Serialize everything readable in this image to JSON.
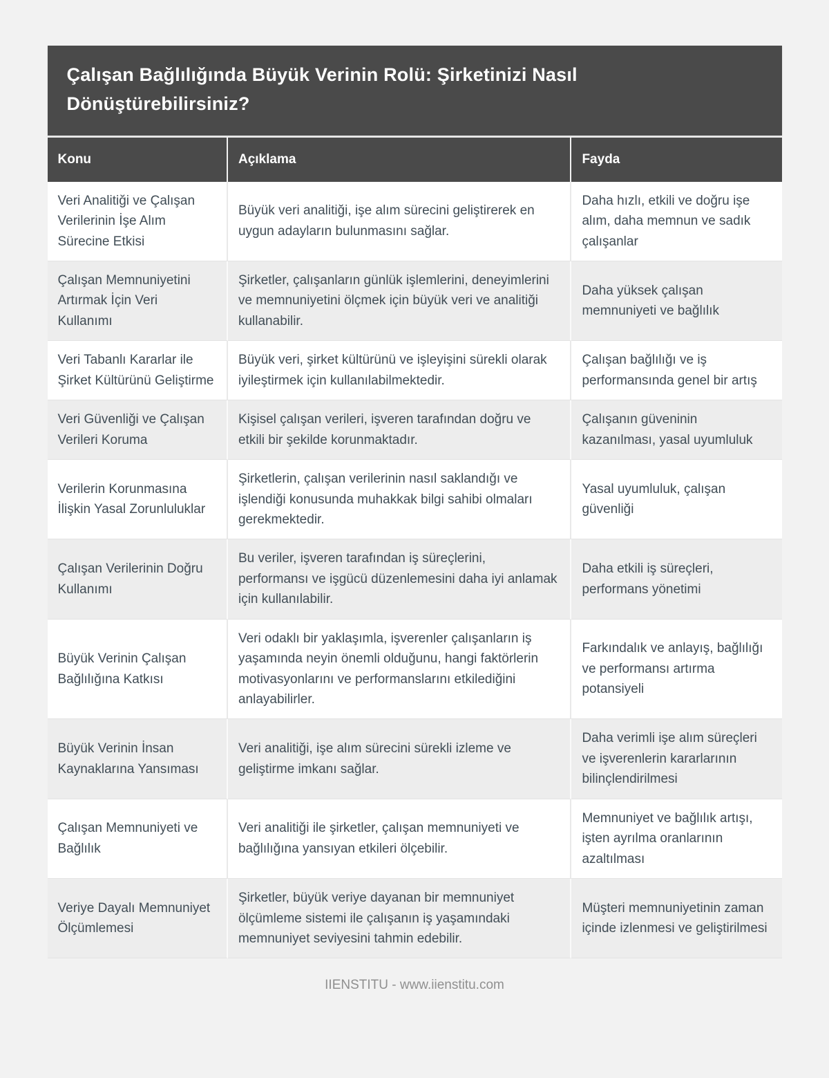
{
  "page": {
    "title": "Çalışan Bağlılığında Büyük Verinin Rolü: Şirketinizi Nasıl Dönüştürebilirsiniz?",
    "footer": "IIENSTITU - www.iienstitu.com"
  },
  "table": {
    "headers": [
      "Konu",
      "Açıklama",
      "Fayda"
    ],
    "rows": [
      {
        "konu": "Veri Analitiği ve Çalışan Verilerinin İşe Alım Sürecine Etkisi",
        "aciklama": "Büyük veri analitiği, işe alım sürecini geliştirerek en uygun adayların bulunmasını sağlar.",
        "fayda": "Daha hızlı, etkili ve doğru işe alım, daha memnun ve sadık çalışanlar"
      },
      {
        "konu": "Çalışan Memnuniyetini Artırmak İçin Veri Kullanımı",
        "aciklama": "Şirketler, çalışanların günlük işlemlerini, deneyimlerini ve memnuniyetini ölçmek için büyük veri ve analitiği kullanabilir.",
        "fayda": "Daha yüksek çalışan memnuniyeti ve bağlılık"
      },
      {
        "konu": "Veri Tabanlı Kararlar ile Şirket Kültürünü Geliştirme",
        "aciklama": "Büyük veri, şirket kültürünü ve işleyişini sürekli olarak iyileştirmek için kullanılabilmektedir.",
        "fayda": "Çalışan bağlılığı ve iş performansında genel bir artış"
      },
      {
        "konu": "Veri Güvenliği ve Çalışan Verileri Koruma",
        "aciklama": "Kişisel çalışan verileri, işveren tarafından doğru ve etkili bir şekilde korunmaktadır.",
        "fayda": "Çalışanın güveninin kazanılması, yasal uyumluluk"
      },
      {
        "konu": "Verilerin Korunmasına İlişkin Yasal Zorunluluklar",
        "aciklama": "Şirketlerin, çalışan verilerinin nasıl saklandığı ve işlendiği konusunda muhakkak bilgi sahibi olmaları gerekmektedir.",
        "fayda": "Yasal uyumluluk, çalışan güvenliği"
      },
      {
        "konu": "Çalışan Verilerinin Doğru Kullanımı",
        "aciklama": "Bu veriler, işveren tarafından iş süreçlerini, performansı ve işgücü düzenlemesini daha iyi anlamak için kullanılabilir.",
        "fayda": "Daha etkili iş süreçleri, performans yönetimi"
      },
      {
        "konu": "Büyük Verinin Çalışan Bağlılığına Katkısı",
        "aciklama": "Veri odaklı bir yaklaşımla, işverenler çalışanların iş yaşamında neyin önemli olduğunu, hangi faktörlerin motivasyonlarını ve performanslarını etkilediğini anlayabilirler.",
        "fayda": "Farkındalık ve anlayış, bağlılığı ve performansı artırma potansiyeli"
      },
      {
        "konu": "Büyük Verinin İnsan Kaynaklarına Yansıması",
        "aciklama": "Veri analitiği, işe alım sürecini sürekli izleme ve geliştirme imkanı sağlar.",
        "fayda": "Daha verimli işe alım süreçleri ve işverenlerin kararlarının bilinçlendirilmesi"
      },
      {
        "konu": "Çalışan Memnuniyeti ve Bağlılık",
        "aciklama": "Veri analitiği ile şirketler, çalışan memnuniyeti ve bağlılığına yansıyan etkileri ölçebilir.",
        "fayda": "Memnuniyet ve bağlılık artışı, işten ayrılma oranlarının azaltılması"
      },
      {
        "konu": "Veriye Dayalı Memnuniyet Ölçümlemesi",
        "aciklama": "Şirketler, büyük veriye dayanan bir memnuniyet ölçümleme sistemi ile çalışanın iş yaşamındaki memnuniyet seviyesini tahmin edebilir.",
        "fayda": "Müşteri memnuniyetinin zaman içinde izlenmesi ve geliştirilmesi"
      }
    ]
  },
  "colors": {
    "page_bg": "#f2f2f2",
    "header_bg": "#4a4a4a",
    "header_text": "#ffffff",
    "row_bg": "#ffffff",
    "row_alt_bg": "#ededed",
    "cell_text": "#414d56",
    "row_border": "#e3e3e3",
    "footer_text": "#8f8f8f"
  }
}
